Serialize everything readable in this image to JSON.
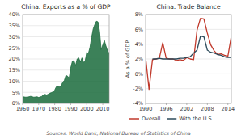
{
  "chart_data": [
    {
      "type": "area",
      "title": "China: Exports as a % of GDP",
      "x": [
        1960,
        1961,
        1962,
        1963,
        1964,
        1965,
        1966,
        1967,
        1968,
        1969,
        1970,
        1971,
        1972,
        1973,
        1974,
        1975,
        1976,
        1977,
        1978,
        1979,
        1980,
        1981,
        1982,
        1983,
        1984,
        1985,
        1986,
        1987,
        1988,
        1989,
        1990,
        1991,
        1992,
        1993,
        1994,
        1995,
        1996,
        1997,
        1998,
        1999,
        2000,
        2001,
        2002,
        2003,
        2004,
        2005,
        2006,
        2007,
        2008,
        2009,
        2010,
        2011,
        2012,
        2013,
        2014
      ],
      "values": [
        3.1,
        2.9,
        2.8,
        2.9,
        3.0,
        3.2,
        3.0,
        2.8,
        2.9,
        3.0,
        2.7,
        2.9,
        3.2,
        3.8,
        4.1,
        3.8,
        4.2,
        4.6,
        4.9,
        5.2,
        6.0,
        7.5,
        7.6,
        7.5,
        8.0,
        9.5,
        10.4,
        12.6,
        12.3,
        11.4,
        16.0,
        18.9,
        19.3,
        17.0,
        20.0,
        20.5,
        18.6,
        20.5,
        18.5,
        19.1,
        23.1,
        22.5,
        25.2,
        29.6,
        33.5,
        35.5,
        37.0,
        36.7,
        32.5,
        24.2,
        26.4,
        28.3,
        25.8,
        23.6,
        22.6
      ],
      "color": "#1a6b3c",
      "xlim": [
        1960,
        2014
      ],
      "xticks": [
        1960,
        1970,
        1980,
        1990,
        2000,
        2010
      ],
      "ylim": [
        0,
        40
      ],
      "yticks": [
        {
          "value": 0,
          "label": "0%"
        },
        {
          "value": 5,
          "label": "5%"
        },
        {
          "value": 10,
          "label": "10%"
        },
        {
          "value": 15,
          "label": "15%"
        },
        {
          "value": 20,
          "label": "20%"
        },
        {
          "value": 25,
          "label": "25%"
        },
        {
          "value": 30,
          "label": "30%"
        },
        {
          "value": 35,
          "label": "35%"
        },
        {
          "value": 40,
          "label": "40%"
        }
      ],
      "grid": true
    },
    {
      "type": "line",
      "title": "China: Trade Balance",
      "ylabel": "As a % of GDP",
      "series": [
        {
          "name": "Overall",
          "color": "#c0392b",
          "x": [
            1990,
            1991,
            1992,
            1993,
            1994,
            1995,
            1996,
            1997,
            1998,
            1999,
            2000,
            2001,
            2002,
            2003,
            2004,
            2005,
            2006,
            2007,
            2008,
            2009,
            2010,
            2011,
            2012,
            2013,
            2014,
            2015
          ],
          "values": [
            2.2,
            -2.1,
            1.9,
            2.0,
            2.1,
            4.2,
            2.1,
            2.0,
            2.0,
            1.8,
            1.9,
            1.8,
            2.2,
            2.0,
            1.9,
            5.9,
            7.5,
            7.4,
            5.5,
            3.9,
            3.1,
            2.6,
            2.7,
            2.5,
            2.4,
            5.1
          ]
        },
        {
          "name": "With the U.S.",
          "color": "#2c4a5a",
          "x": [
            1992,
            1993,
            1994,
            1995,
            1996,
            1997,
            1998,
            1999,
            2000,
            2001,
            2002,
            2003,
            2004,
            2005,
            2006,
            2007,
            2008,
            2009,
            2010,
            2011,
            2012,
            2013,
            2014,
            2015
          ],
          "values": [
            2.0,
            2.0,
            2.1,
            2.0,
            2.0,
            2.0,
            2.0,
            2.0,
            2.1,
            2.1,
            2.2,
            2.3,
            2.8,
            3.2,
            5.1,
            5.0,
            3.2,
            2.9,
            2.8,
            2.6,
            2.5,
            2.3,
            2.2,
            2.2
          ]
        }
      ],
      "xlim": [
        1990,
        2015
      ],
      "xticks": [
        1990,
        1996,
        2002,
        2008,
        2014
      ],
      "ylim": [
        -4,
        8
      ],
      "yticks": [
        {
          "value": -4,
          "label": "-4%"
        },
        {
          "value": -2,
          "label": "-2%"
        },
        {
          "value": 0,
          "label": "0%"
        },
        {
          "value": 2,
          "label": "2%"
        },
        {
          "value": 4,
          "label": "4%"
        },
        {
          "value": 6,
          "label": "6%"
        },
        {
          "value": 8,
          "label": "8%"
        }
      ],
      "grid": true,
      "legend": "bottom",
      "annotations": [
        "Sources: World Bank, National Bureau of Statistics of China"
      ]
    }
  ]
}
